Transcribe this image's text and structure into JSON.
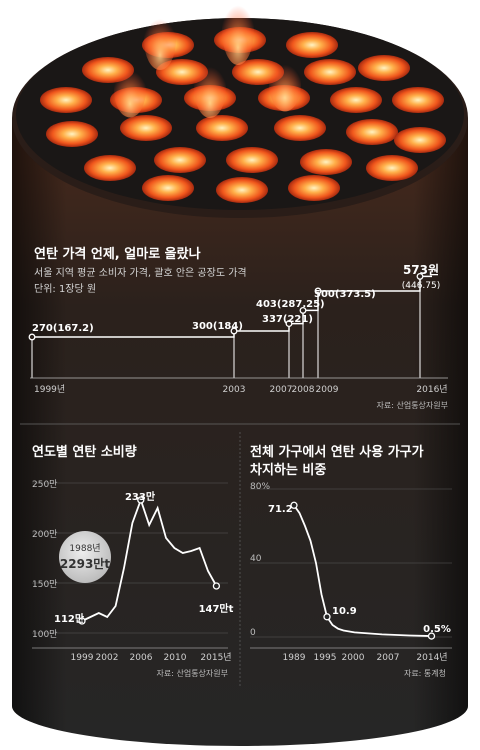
{
  "colors": {
    "body_top": "#4a2a1c",
    "body_mid": "#2b211c",
    "body_bottom": "#262626",
    "disk": "#1c1a19",
    "hole_glow": "#ff6a1e",
    "line": "#ffffff",
    "text": "#ffffff",
    "subtext": "#d4d4d4",
    "callout": "#d9d9d9"
  },
  "price_chart": {
    "title": "연탄 가격 언제, 얼마로 올랐나",
    "subtitle": "서울 지역 평균 소비자 가격, 괄호 안은 공장도 가격",
    "unit": "단위: 1장당 원",
    "source": "자료: 산업통상자원부",
    "final_value": "573원",
    "final_paren": "(446.75)",
    "labels": [
      "270(167.2)",
      "300(184)",
      "337(221)",
      "403(287.25)",
      "500(373.5)"
    ],
    "year_ticks": [
      "1999년",
      "2003",
      "2007",
      "2008",
      "2009",
      "2016년"
    ]
  },
  "consumption_chart": {
    "title": "연도별 연탄 소비량",
    "y_ticks": [
      "250만",
      "200만",
      "150만",
      "100만"
    ],
    "x_ticks": [
      "1999",
      "2002",
      "2006",
      "2010",
      "2015년"
    ],
    "start_label": "112만",
    "peak_label": "233만",
    "end_label": "147만t",
    "callout_year": "1988년",
    "callout_value": "2293만t",
    "source": "자료: 산업통상자원부"
  },
  "share_chart": {
    "title_line1": "전체 가구에서 연탄 사용 가구가",
    "title_line2": "차지하는 비중",
    "y_ticks": [
      "80%",
      "40",
      "0"
    ],
    "x_ticks": [
      "1989",
      "1995",
      "2000",
      "2007",
      "2014년"
    ],
    "start_label": "71.2",
    "mid_label": "10.9",
    "end_label": "0.5%",
    "source": "자료: 통계청"
  },
  "chart_data": [
    {
      "type": "line",
      "title": "연탄 가격 언제, 얼마로 올랐나",
      "subtitle": "서울 지역 평균 소비자 가격, 괄호 안은 공장도 가격",
      "ylabel": "단위: 1장당 원",
      "x": [
        1999,
        2003,
        2007,
        2008,
        2009,
        2016
      ],
      "series": [
        {
          "name": "소비자 가격",
          "values": [
            270,
            300,
            337,
            403,
            500,
            573
          ]
        },
        {
          "name": "공장도 가격",
          "values": [
            167.2,
            184,
            221,
            287.25,
            373.5,
            446.75
          ]
        }
      ],
      "step": true
    },
    {
      "type": "line",
      "title": "연도별 연탄 소비량",
      "xlim": [
        1998,
        2016
      ],
      "ylim": [
        100,
        250
      ],
      "x": [
        1999,
        2000,
        2001,
        2002,
        2003,
        2004,
        2005,
        2006,
        2007,
        2008,
        2009,
        2010,
        2011,
        2012,
        2013,
        2014,
        2015
      ],
      "y": [
        112,
        116,
        120,
        116,
        127,
        165,
        210,
        233,
        208,
        225,
        195,
        185,
        180,
        182,
        185,
        162,
        147
      ],
      "annotations": [
        {
          "year": "1988년",
          "value": "2293만t"
        }
      ],
      "source": "자료: 산업통상자원부"
    },
    {
      "type": "line",
      "title": "전체 가구에서 연탄 사용 가구가 차지하는 비중",
      "xlim": [
        1988,
        2015
      ],
      "ylim": [
        0,
        80
      ],
      "x": [
        1989,
        1990,
        1991,
        1992,
        1993,
        1994,
        1995,
        1996,
        1997,
        1998,
        2000,
        2005,
        2010,
        2014
      ],
      "y": [
        71.2,
        67,
        60,
        52,
        40,
        23,
        10.9,
        6.5,
        4.5,
        3.5,
        2.5,
        1.4,
        0.8,
        0.5
      ],
      "source": "자료: 통계청"
    }
  ]
}
